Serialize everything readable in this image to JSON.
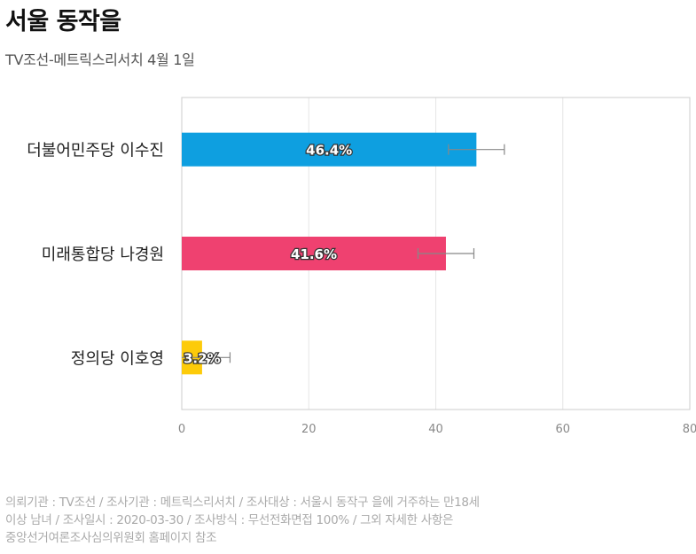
{
  "header": {
    "title": "서울 동작을",
    "subtitle": "TV조선-메트릭스리서치 4월 1일"
  },
  "chart_data": {
    "type": "bar",
    "orientation": "horizontal",
    "categories": [
      "더불어민주당 이수진",
      "미래통합당 나경원",
      "정의당 이호영"
    ],
    "values": [
      46.4,
      41.6,
      3.2
    ],
    "value_labels": [
      "46.4%",
      "41.6%",
      "3.2%"
    ],
    "colors": [
      "#0e9fe0",
      "#ef4170",
      "#fdcb0a"
    ],
    "error_margin": 4.4,
    "xlim": [
      0,
      80
    ],
    "xticks": [
      0,
      20,
      40,
      60,
      80
    ],
    "xtick_labels": [
      "0",
      "20",
      "40",
      "60",
      "80"
    ],
    "grid": true
  },
  "footnote": {
    "lines": [
      "의뢰기관 : TV조선 / 조사기관 : 메트릭스리서치 / 조사대상 : 서울시 동작구 을에 거주하는 만18세",
      "이상 남녀 / 조사일시 : 2020-03-30 / 조사방식 : 무선전화면접 100% / 그외 자세한 사항은",
      "중앙선거여론조사심의위원회 홈페이지 참조"
    ]
  }
}
